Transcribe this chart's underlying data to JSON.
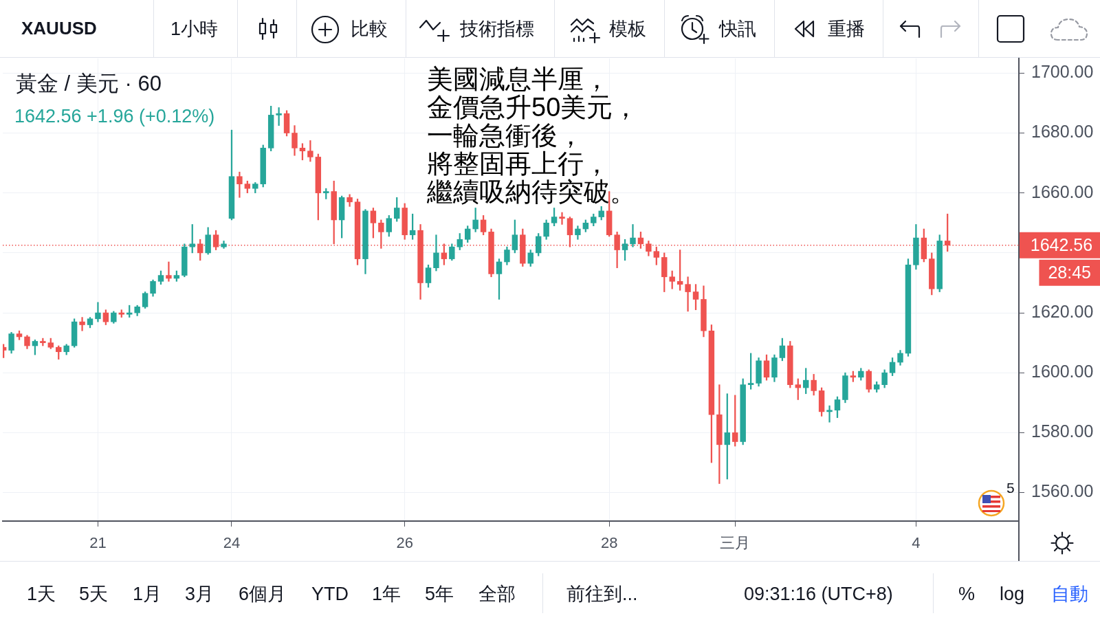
{
  "chart_data": {
    "type": "candlestick",
    "title": "黃金 / 美元 · 60",
    "subtitle": "1642.56 +1.96 (+0.12%)",
    "categories": [
      null,
      null,
      null,
      null,
      null,
      null,
      null,
      null,
      null,
      null,
      null,
      null,
      "21",
      null,
      null,
      null,
      null,
      null,
      null,
      null,
      null,
      null,
      null,
      null,
      null,
      null,
      null,
      null,
      null,
      "24",
      null,
      null,
      null,
      null,
      null,
      null,
      null,
      null,
      null,
      null,
      null,
      null,
      null,
      null,
      null,
      null,
      null,
      null,
      null,
      null,
      null,
      "26",
      null,
      null,
      null,
      null,
      null,
      null,
      null,
      null,
      null,
      null,
      null,
      null,
      null,
      null,
      null,
      null,
      null,
      null,
      null,
      null,
      null,
      null,
      null,
      null,
      null,
      "28",
      null,
      null,
      null,
      null,
      null,
      null,
      null,
      null,
      null,
      null,
      null,
      null,
      null,
      null,
      null,
      "三月",
      null,
      null,
      null,
      null,
      null,
      null,
      null,
      null,
      null,
      null,
      null,
      null,
      null,
      null,
      null,
      null,
      null,
      null,
      null,
      null,
      null,
      null,
      "4",
      null,
      null,
      null,
      null
    ],
    "ohlc": [
      [
        1608.5,
        1609.5,
        1605,
        1607.5
      ],
      [
        1607.5,
        1613.5,
        1606.5,
        1613
      ],
      [
        1613,
        1614,
        1611,
        1612
      ],
      [
        1612,
        1612.5,
        1608,
        1609
      ],
      [
        1609,
        1611,
        1606,
        1610.5
      ],
      [
        1610.5,
        1611.5,
        1609,
        1610
      ],
      [
        1610,
        1611.5,
        1608,
        1608.5
      ],
      [
        1608.5,
        1609,
        1604.5,
        1607
      ],
      [
        1607,
        1609.5,
        1606,
        1609
      ],
      [
        1609,
        1618,
        1608.5,
        1617
      ],
      [
        1617,
        1618.5,
        1614,
        1616
      ],
      [
        1616,
        1618.5,
        1615,
        1618
      ],
      [
        1618,
        1623.5,
        1617,
        1620
      ],
      [
        1620,
        1621,
        1616,
        1617
      ],
      [
        1617,
        1620.5,
        1616.5,
        1620
      ],
      [
        1620,
        1621,
        1618.5,
        1619.5
      ],
      [
        1619.5,
        1622.5,
        1618.5,
        1620
      ],
      [
        1620,
        1622.5,
        1619,
        1622
      ],
      [
        1622,
        1627,
        1621.5,
        1626.5
      ],
      [
        1626.5,
        1631,
        1625.5,
        1630.5
      ],
      [
        1630.5,
        1634,
        1629.5,
        1632.5
      ],
      [
        1632.5,
        1637,
        1630.5,
        1631.5
      ],
      [
        1631.5,
        1634,
        1630.5,
        1632.5
      ],
      [
        1632.5,
        1643,
        1632,
        1642
      ],
      [
        1642,
        1649.5,
        1640,
        1643
      ],
      [
        1643,
        1644.5,
        1637.5,
        1640
      ],
      [
        1640,
        1648.5,
        1639.5,
        1646
      ],
      [
        1646,
        1647.5,
        1641,
        1642
      ],
      [
        1642,
        1644,
        1641.5,
        1643
      ],
      [
        1651.5,
        1681,
        1651,
        1665.5
      ],
      [
        1665.5,
        1667,
        1658.5,
        1663
      ],
      [
        1663,
        1664,
        1660,
        1661.5
      ],
      [
        1661.5,
        1663.5,
        1660,
        1663
      ],
      [
        1663,
        1676,
        1662,
        1675
      ],
      [
        1675,
        1689,
        1674,
        1686
      ],
      [
        1686,
        1688.5,
        1682.5,
        1686.5
      ],
      [
        1686.5,
        1687.5,
        1679,
        1680
      ],
      [
        1680,
        1682.5,
        1672.5,
        1675
      ],
      [
        1675,
        1676.5,
        1671,
        1674
      ],
      [
        1674,
        1677.5,
        1670.5,
        1672
      ],
      [
        1672,
        1673,
        1651,
        1660
      ],
      [
        1660,
        1661.5,
        1658,
        1660.5
      ],
      [
        1660.5,
        1664,
        1643,
        1651
      ],
      [
        1651,
        1659,
        1645,
        1658.5
      ],
      [
        1658.5,
        1659.5,
        1655.5,
        1657
      ],
      [
        1657,
        1658,
        1636,
        1638
      ],
      [
        1638,
        1654.5,
        1633,
        1654
      ],
      [
        1654,
        1655,
        1645,
        1650
      ],
      [
        1650,
        1651,
        1641.5,
        1647
      ],
      [
        1647,
        1652.5,
        1645.5,
        1651.5
      ],
      [
        1651.5,
        1658.5,
        1650.5,
        1655
      ],
      [
        1655,
        1656.5,
        1644.5,
        1646
      ],
      [
        1646,
        1653,
        1644.5,
        1647.5
      ],
      [
        1647.5,
        1649.5,
        1624.5,
        1630
      ],
      [
        1630,
        1636,
        1628.5,
        1635
      ],
      [
        1635,
        1646,
        1634,
        1640
      ],
      [
        1640,
        1643,
        1636,
        1638
      ],
      [
        1638,
        1643,
        1637.5,
        1642
      ],
      [
        1642,
        1646.5,
        1641,
        1644.5
      ],
      [
        1644.5,
        1649,
        1643.5,
        1648
      ],
      [
        1648,
        1655,
        1647,
        1651
      ],
      [
        1651,
        1652.5,
        1646,
        1647
      ],
      [
        1647,
        1648,
        1632,
        1633
      ],
      [
        1633,
        1638,
        1624.5,
        1637
      ],
      [
        1637,
        1642,
        1636,
        1641
      ],
      [
        1641,
        1651,
        1640,
        1646
      ],
      [
        1646,
        1648,
        1635.5,
        1636.5
      ],
      [
        1636.5,
        1641,
        1635.5,
        1640
      ],
      [
        1640,
        1646.5,
        1639,
        1645.5
      ],
      [
        1645.5,
        1651,
        1644.5,
        1650
      ],
      [
        1650,
        1655,
        1649,
        1652
      ],
      [
        1652,
        1653.5,
        1649.5,
        1651.5
      ],
      [
        1651.5,
        1652,
        1642,
        1646
      ],
      [
        1646,
        1649,
        1644.5,
        1648
      ],
      [
        1648,
        1651,
        1647,
        1650
      ],
      [
        1650,
        1653,
        1649,
        1652
      ],
      [
        1652,
        1655.5,
        1651,
        1654
      ],
      [
        1654,
        1660.5,
        1645.5,
        1646
      ],
      [
        1646,
        1647,
        1635,
        1641
      ],
      [
        1641,
        1644.5,
        1637.5,
        1643
      ],
      [
        1643,
        1649.5,
        1642,
        1645
      ],
      [
        1645,
        1647,
        1641.5,
        1643
      ],
      [
        1643,
        1644,
        1639,
        1640.5
      ],
      [
        1640.5,
        1642,
        1636,
        1638.5
      ],
      [
        1638.5,
        1640,
        1627,
        1632
      ],
      [
        1632,
        1634,
        1628,
        1630.5
      ],
      [
        1630.5,
        1641,
        1627.5,
        1629.5
      ],
      [
        1629.5,
        1632,
        1620.5,
        1627
      ],
      [
        1627,
        1629.5,
        1621,
        1624.5
      ],
      [
        1624.5,
        1629,
        1612,
        1614
      ],
      [
        1614,
        1616,
        1570,
        1586
      ],
      [
        1586,
        1596,
        1563,
        1576
      ],
      [
        1576,
        1593,
        1564.5,
        1580
      ],
      [
        1580,
        1592.5,
        1575.5,
        1577
      ],
      [
        1577,
        1598,
        1576,
        1596
      ],
      [
        1596,
        1606.5,
        1594.5,
        1596.5
      ],
      [
        1596.5,
        1605,
        1595.5,
        1604
      ],
      [
        1604,
        1606,
        1597.5,
        1598.5
      ],
      [
        1598.5,
        1606,
        1597,
        1605
      ],
      [
        1605,
        1611.5,
        1604,
        1609
      ],
      [
        1609,
        1610.5,
        1595,
        1596
      ],
      [
        1596,
        1598,
        1591,
        1595
      ],
      [
        1595,
        1601.5,
        1593,
        1597.5
      ],
      [
        1597.5,
        1599.5,
        1592.5,
        1594
      ],
      [
        1594,
        1595,
        1585.5,
        1587
      ],
      [
        1587,
        1589,
        1583.5,
        1587.5
      ],
      [
        1587.5,
        1592,
        1585,
        1591
      ],
      [
        1591,
        1600,
        1590,
        1599
      ],
      [
        1599,
        1600.5,
        1597,
        1598.5
      ],
      [
        1598.5,
        1601.5,
        1597.5,
        1600.5
      ],
      [
        1600.5,
        1601,
        1593.5,
        1594.5
      ],
      [
        1594.5,
        1597,
        1593.5,
        1596
      ],
      [
        1596,
        1601,
        1595,
        1600
      ],
      [
        1600,
        1605,
        1599,
        1603.5
      ],
      [
        1603.5,
        1607.5,
        1602.5,
        1606.5
      ],
      [
        1606.5,
        1638,
        1605.5,
        1636
      ],
      [
        1636,
        1649.5,
        1634.5,
        1645
      ],
      [
        1645,
        1648,
        1637,
        1638
      ],
      [
        1638,
        1640,
        1626,
        1628
      ],
      [
        1628,
        1646,
        1627,
        1644
      ],
      [
        1644,
        1653,
        1640.5,
        1642.56
      ]
    ],
    "colors": [
      "#ef5350",
      "#26a69a",
      "#ef5350",
      "#ef5350",
      "#26a69a",
      "#ef5350",
      "#ef5350",
      "#ef5350",
      "#26a69a",
      "#26a69a",
      "#ef5350",
      "#26a69a",
      "#26a69a",
      "#ef5350",
      "#26a69a",
      "#ef5350",
      "#26a69a",
      "#26a69a",
      "#26a69a",
      "#26a69a",
      "#26a69a",
      "#ef5350",
      "#26a69a",
      "#26a69a",
      "#26a69a",
      "#ef5350",
      "#26a69a",
      "#ef5350",
      "#26a69a",
      "#26a69a",
      "#ef5350",
      "#ef5350",
      "#26a69a",
      "#26a69a",
      "#26a69a",
      "#26a69a",
      "#ef5350",
      "#ef5350",
      "#ef5350",
      "#ef5350",
      "#ef5350",
      "#26a69a",
      "#ef5350",
      "#26a69a",
      "#ef5350",
      "#ef5350",
      "#26a69a",
      "#ef5350",
      "#ef5350",
      "#26a69a",
      "#26a69a",
      "#ef5350",
      "#26a69a",
      "#ef5350",
      "#26a69a",
      "#26a69a",
      "#ef5350",
      "#26a69a",
      "#26a69a",
      "#26a69a",
      "#26a69a",
      "#ef5350",
      "#ef5350",
      "#26a69a",
      "#26a69a",
      "#26a69a",
      "#ef5350",
      "#26a69a",
      "#26a69a",
      "#26a69a",
      "#26a69a",
      "#ef5350",
      "#ef5350",
      "#26a69a",
      "#26a69a",
      "#26a69a",
      "#26a69a",
      "#ef5350",
      "#ef5350",
      "#26a69a",
      "#26a69a",
      "#ef5350",
      "#ef5350",
      "#ef5350",
      "#ef5350",
      "#ef5350",
      "#ef5350",
      "#ef5350",
      "#ef5350",
      "#ef5350",
      "#ef5350",
      "#ef5350",
      "#26a69a",
      "#ef5350",
      "#26a69a",
      "#26a69a",
      "#26a69a",
      "#ef5350",
      "#26a69a",
      "#26a69a",
      "#ef5350",
      "#ef5350",
      "#26a69a",
      "#ef5350",
      "#ef5350",
      "#26a69a",
      "#26a69a",
      "#26a69a",
      "#ef5350",
      "#26a69a",
      "#ef5350",
      "#26a69a",
      "#26a69a",
      "#26a69a",
      "#26a69a",
      "#26a69a",
      "#26a69a",
      "#ef5350",
      "#ef5350",
      "#26a69a",
      "#ef5350"
    ],
    "ylim": [
      1550.5,
      1704.9
    ],
    "yticks": [
      {
        "value": 1560,
        "label": "1560.00"
      },
      {
        "value": 1580,
        "label": "1580.00"
      },
      {
        "value": 1600,
        "label": "1600.00"
      },
      {
        "value": 1620,
        "label": "1620.00"
      },
      {
        "value": 1640,
        "label": null
      },
      {
        "value": 1660,
        "label": "1660.00"
      },
      {
        "value": 1680,
        "label": "1680.00"
      },
      {
        "value": 1700,
        "label": "1700.00"
      }
    ],
    "grid": true,
    "ref_lines": [
      {
        "axis": "y",
        "value": 1642.56,
        "label": "1642.56",
        "color": "#ef5350",
        "line_style": "dotted"
      }
    ],
    "annotations": [
      "美國減息半厘，",
      "金價急升50美元，",
      "一輪急衝後，",
      "將整固再上行，",
      "繼續吸納待突破。",
      "28:45",
      "5",
      "XAUUSD",
      "1小時",
      "比較",
      "技術指標",
      "模板",
      "快訊",
      "重播",
      "1天",
      "5天",
      "1月",
      "3月",
      "6個月",
      "YTD",
      "1年",
      "5年",
      "全部",
      "前往到...",
      "09:31:16 (UTC+8)",
      "%",
      "log",
      "自動"
    ]
  }
}
